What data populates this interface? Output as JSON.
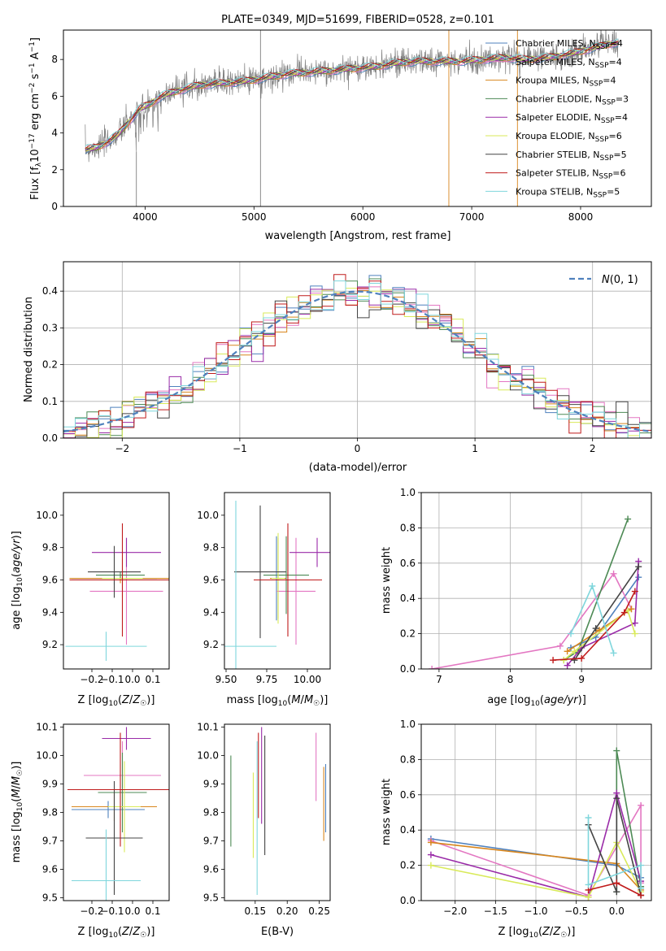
{
  "chart_data": [
    {
      "id": "spectrum",
      "type": "line",
      "title": "PLATE=0349, MJD=51699, FIBERID=0528, z=0.101",
      "xlabel": "wavelength [Angstrom, rest frame]",
      "ylabel": "Flux [f$_\\lambda$10$^{-17}$ erg cm$^{-2}$ s$^{-1}$ A$^{-1}$]",
      "ylabel_parts": [
        "Flux [f",
        "λ",
        "10",
        "−17",
        " erg cm",
        "−2",
        " s",
        "−1",
        " A",
        "−1",
        "]"
      ],
      "xlim": [
        3250,
        8650
      ],
      "ylim": [
        0,
        9.6
      ],
      "xticks": [
        4000,
        5000,
        6000,
        7000,
        8000
      ],
      "yticks": [
        0,
        2,
        4,
        6,
        8
      ],
      "legend_position": "upper-right",
      "data_sampling": [
        3450,
        3550,
        3650,
        3750,
        3850,
        3950,
        4050,
        4150,
        4300,
        4500,
        4700,
        4900,
        5100,
        5300,
        5500,
        5700,
        5900,
        6100,
        6300,
        6500,
        6700,
        6900,
        7100,
        7300,
        7500,
        7700,
        7900,
        8100,
        8300
      ],
      "observed_flux": [
        3.1,
        3.2,
        3.5,
        3.9,
        4.6,
        5.3,
        5.6,
        6.0,
        6.3,
        6.6,
        6.7,
        6.8,
        7.0,
        7.2,
        7.3,
        7.4,
        7.5,
        7.6,
        7.8,
        7.9,
        7.9,
        7.9,
        8.0,
        8.1,
        8.0,
        8.1,
        8.3,
        8.6,
        8.9
      ],
      "series": [
        {
          "name": "Chabrier MILES, N_SSP=4",
          "color": "#4f81bd"
        },
        {
          "name": "Salpeter MILES, N_SSP=4",
          "color": "#e377c2"
        },
        {
          "name": "Kroupa MILES, N_SSP=4",
          "color": "#d8861d"
        },
        {
          "name": "Chabrier ELODIE, N_SSP=3",
          "color": "#4d8a55"
        },
        {
          "name": "Salpeter ELODIE, N_SSP=4",
          "color": "#9a2ba8"
        },
        {
          "name": "Kroupa ELODIE, N_SSP=6",
          "color": "#d9ea5a"
        },
        {
          "name": "Chabrier STELIB, N_SSP=5",
          "color": "#444444"
        },
        {
          "name": "Salpeter STELIB, N_SSP=6",
          "color": "#c01b1b"
        },
        {
          "name": "Kroupa STELIB, N_SSP=5",
          "color": "#7fd6dc"
        }
      ],
      "legend_labels": [
        {
          "pre": "Chabrier MILES, N",
          "sub": "SSP",
          "post": "=4"
        },
        {
          "pre": "Salpeter MILES, N",
          "sub": "SSP",
          "post": "=4"
        },
        {
          "pre": "Kroupa MILES, N",
          "sub": "SSP",
          "post": "=4"
        },
        {
          "pre": "Chabrier ELODIE, N",
          "sub": "SSP",
          "post": "=3"
        },
        {
          "pre": "Salpeter ELODIE, N",
          "sub": "SSP",
          "post": "=4"
        },
        {
          "pre": "Kroupa ELODIE, N",
          "sub": "SSP",
          "post": "=6"
        },
        {
          "pre": "Chabrier STELIB, N",
          "sub": "SSP",
          "post": "=5"
        },
        {
          "pre": "Salpeter STELIB, N",
          "sub": "SSP",
          "post": "=6"
        },
        {
          "pre": "Kroupa STELIB, N",
          "sub": "SSP",
          "post": "=5"
        }
      ]
    },
    {
      "id": "residuals",
      "type": "histogram",
      "xlabel": "(data-model)/error",
      "ylabel": "Normed distribution",
      "xlim": [
        -2.5,
        2.5
      ],
      "ylim": [
        0,
        0.48
      ],
      "xticks": [
        -2,
        -1,
        0,
        1,
        2
      ],
      "yticks": [
        0.0,
        0.1,
        0.2,
        0.3,
        0.4
      ],
      "grid": true,
      "legend": {
        "label": "N(0,1)",
        "position": "upper-right"
      },
      "bin_width": 0.1,
      "reference_curve": "normal(0,1)"
    },
    {
      "id": "age_vs_Z",
      "type": "errorbar",
      "xlabel": "Z [log10(Z/Z☉)]",
      "ylabel": "age  [log10(age/yr)]",
      "xlim": [
        -0.34,
        0.18
      ],
      "ylim": [
        9.05,
        10.14
      ],
      "xticks": [
        -0.2,
        -0.1,
        0.0,
        0.1
      ],
      "yticks": [
        9.2,
        9.4,
        9.6,
        9.8,
        10.0
      ],
      "points": [
        {
          "x": -0.09,
          "xerr": 0.21,
          "y": 9.61,
          "yerr": 0.04,
          "color": "#4f81bd"
        },
        {
          "x": -0.03,
          "xerr": 0.18,
          "y": 9.53,
          "yerr": 0.33,
          "color": "#e377c2"
        },
        {
          "x": -0.06,
          "xerr": 0.25,
          "y": 9.61,
          "yerr": 0.03,
          "color": "#d8861d"
        },
        {
          "x": -0.06,
          "xerr": 0.12,
          "y": 9.63,
          "yerr": 0.02,
          "color": "#4d8a55"
        },
        {
          "x": -0.03,
          "xerr": 0.17,
          "y": 9.77,
          "yerr": 0.09,
          "color": "#9a2ba8"
        },
        {
          "x": -0.05,
          "xerr": 0.1,
          "y": 9.61,
          "yerr": 0.12,
          "color": "#d9ea5a"
        },
        {
          "x": -0.09,
          "xerr": 0.13,
          "y": 9.65,
          "yerr": 0.16,
          "color": "#444444"
        },
        {
          "x": -0.05,
          "xerr": 0.26,
          "y": 9.6,
          "yerr": 0.35,
          "color": "#c01b1b"
        },
        {
          "x": -0.13,
          "xerr": 0.2,
          "y": 9.19,
          "yerr": 0.09,
          "color": "#7fd6dc"
        }
      ]
    },
    {
      "id": "age_vs_mass",
      "type": "errorbar",
      "xlabel": "mass [log10(M/M☉)]",
      "ylabel": "",
      "xlim": [
        9.49,
        10.14
      ],
      "ylim": [
        9.05,
        10.14
      ],
      "xticks": [
        9.5,
        9.75,
        10.0
      ],
      "yticks": [
        9.2,
        9.4,
        9.6,
        9.8,
        10.0
      ],
      "points": [
        {
          "x": 9.81,
          "xerr": 0.03,
          "y": 9.61,
          "yerr": 0.26,
          "color": "#4f81bd"
        },
        {
          "x": 9.93,
          "xerr": 0.12,
          "y": 9.53,
          "yerr": 0.33,
          "color": "#e377c2"
        },
        {
          "x": 9.82,
          "xerr": 0.05,
          "y": 9.61,
          "yerr": 0.25,
          "color": "#d8861d"
        },
        {
          "x": 9.87,
          "xerr": 0.14,
          "y": 9.63,
          "yerr": 0.24,
          "color": "#4d8a55"
        },
        {
          "x": 10.06,
          "xerr": 0.17,
          "y": 9.77,
          "yerr": 0.09,
          "color": "#9a2ba8"
        },
        {
          "x": 9.82,
          "xerr": 0.04,
          "y": 9.61,
          "yerr": 0.28,
          "color": "#d9ea5a"
        },
        {
          "x": 9.71,
          "xerr": 0.16,
          "y": 9.65,
          "yerr": 0.41,
          "color": "#444444"
        },
        {
          "x": 9.88,
          "xerr": 0.21,
          "y": 9.6,
          "yerr": 0.35,
          "color": "#c01b1b"
        },
        {
          "x": 9.56,
          "xerr": 0.25,
          "y": 9.19,
          "yerr": 0.9,
          "color": "#7fd6dc"
        }
      ]
    },
    {
      "id": "weight_vs_age",
      "type": "line",
      "xlabel": "age  [log10(age/yr)]",
      "ylabel": "mass weight",
      "xlim": [
        6.75,
        9.98
      ],
      "ylim": [
        0.0,
        1.0
      ],
      "xticks": [
        7,
        8,
        9
      ],
      "yticks": [
        0.0,
        0.2,
        0.4,
        0.6,
        0.8,
        1.0
      ],
      "grid": true,
      "series": [
        {
          "color": "#4f81bd",
          "x": [
            8.85,
            9.2,
            9.8
          ],
          "y": [
            0.12,
            0.18,
            0.52
          ]
        },
        {
          "color": "#e377c2",
          "x": [
            6.9,
            8.7,
            9.45,
            9.7
          ],
          "y": [
            0.0,
            0.13,
            0.54,
            0.34
          ]
        },
        {
          "color": "#d8861d",
          "x": [
            8.8,
            9.25,
            9.7
          ],
          "y": [
            0.1,
            0.22,
            0.34
          ]
        },
        {
          "color": "#4d8a55",
          "x": [
            8.75,
            8.95,
            9.65
          ],
          "y": [
            0.05,
            0.1,
            0.85
          ]
        },
        {
          "color": "#9a2ba8",
          "x": [
            8.8,
            9.0,
            9.75,
            9.8
          ],
          "y": [
            0.02,
            0.12,
            0.26,
            0.61
          ]
        },
        {
          "color": "#d9ea5a",
          "x": [
            8.75,
            8.9,
            9.65,
            9.75
          ],
          "y": [
            0.05,
            0.1,
            0.33,
            0.2
          ]
        },
        {
          "color": "#444444",
          "x": [
            8.9,
            9.2,
            9.8
          ],
          "y": [
            0.05,
            0.23,
            0.58
          ]
        },
        {
          "color": "#c01b1b",
          "x": [
            8.6,
            9.0,
            9.6,
            9.75
          ],
          "y": [
            0.05,
            0.06,
            0.32,
            0.44
          ]
        },
        {
          "color": "#7fd6dc",
          "x": [
            8.85,
            9.15,
            9.45
          ],
          "y": [
            0.2,
            0.47,
            0.09
          ]
        }
      ]
    },
    {
      "id": "mass_vs_Z",
      "type": "errorbar",
      "xlabel": "Z [log10(Z/Z☉)]",
      "ylabel": "mass [log10(M/M☉)]",
      "xlim": [
        -0.34,
        0.18
      ],
      "ylim": [
        9.49,
        10.11
      ],
      "xticks": [
        -0.2,
        -0.1,
        0.0,
        0.1
      ],
      "yticks": [
        9.5,
        9.6,
        9.7,
        9.8,
        9.9,
        10.0,
        10.1
      ],
      "points": [
        {
          "x": -0.12,
          "xerr": 0.18,
          "y": 9.81,
          "yerr": 0.03,
          "color": "#4f81bd"
        },
        {
          "x": -0.05,
          "xerr": 0.19,
          "y": 9.93,
          "yerr": 0.12,
          "color": "#e377c2"
        },
        {
          "x": -0.09,
          "xerr": 0.21,
          "y": 9.82,
          "yerr": 0.05,
          "color": "#d8861d"
        },
        {
          "x": -0.05,
          "xerr": 0.12,
          "y": 9.87,
          "yerr": 0.14,
          "color": "#4d8a55"
        },
        {
          "x": -0.03,
          "xerr": 0.12,
          "y": 10.06,
          "yerr": 0.04,
          "color": "#9a2ba8"
        },
        {
          "x": -0.04,
          "xerr": 0.08,
          "y": 9.82,
          "yerr": 0.16,
          "color": "#d9ea5a"
        },
        {
          "x": -0.09,
          "xerr": 0.14,
          "y": 9.71,
          "yerr": 0.2,
          "color": "#444444"
        },
        {
          "x": -0.06,
          "xerr": 0.26,
          "y": 9.88,
          "yerr": 0.2,
          "color": "#c01b1b"
        },
        {
          "x": -0.13,
          "xerr": 0.17,
          "y": 9.56,
          "yerr": 0.18,
          "color": "#7fd6dc"
        }
      ]
    },
    {
      "id": "mass_vs_EBV",
      "type": "errorbar",
      "xlabel": "E(B-V)",
      "ylabel": "",
      "xlim": [
        0.102,
        0.267
      ],
      "ylim": [
        9.49,
        10.11
      ],
      "xticks": [
        0.15,
        0.2,
        0.25
      ],
      "yticks": [
        9.5,
        9.6,
        9.7,
        9.8,
        9.9,
        10.0,
        10.1
      ],
      "points": [
        {
          "x": 0.26,
          "xerr": 0.0,
          "y": 9.85,
          "yerr": 0.12,
          "color": "#4f81bd"
        },
        {
          "x": 0.245,
          "xerr": 0.0,
          "y": 9.96,
          "yerr": 0.12,
          "color": "#e377c2"
        },
        {
          "x": 0.257,
          "xerr": 0.0,
          "y": 9.83,
          "yerr": 0.13,
          "color": "#d8861d"
        },
        {
          "x": 0.112,
          "xerr": 0.0,
          "y": 9.84,
          "yerr": 0.16,
          "color": "#4d8a55"
        },
        {
          "x": 0.16,
          "xerr": 0.0,
          "y": 9.93,
          "yerr": 0.17,
          "color": "#9a2ba8"
        },
        {
          "x": 0.147,
          "xerr": 0.0,
          "y": 9.79,
          "yerr": 0.15,
          "color": "#d9ea5a"
        },
        {
          "x": 0.165,
          "xerr": 0.0,
          "y": 9.86,
          "yerr": 0.21,
          "color": "#444444"
        },
        {
          "x": 0.155,
          "xerr": 0.0,
          "y": 9.93,
          "yerr": 0.15,
          "color": "#c01b1b"
        },
        {
          "x": 0.153,
          "xerr": 0.0,
          "y": 9.78,
          "yerr": 0.27,
          "color": "#7fd6dc"
        }
      ]
    },
    {
      "id": "weight_vs_Z",
      "type": "line",
      "xlabel": "Z [log10(Z/Z☉)]",
      "ylabel": "mass weight",
      "xlim": [
        -2.42,
        0.43
      ],
      "ylim": [
        0.0,
        1.0
      ],
      "xticks": [
        -2.0,
        -1.5,
        -1.0,
        -0.5,
        0.0
      ],
      "yticks": [
        0.0,
        0.2,
        0.4,
        0.6,
        0.8,
        1.0
      ],
      "grid": true,
      "series": [
        {
          "color": "#4f81bd",
          "x": [
            -2.3,
            0.0,
            0.3
          ],
          "y": [
            0.35,
            0.2,
            0.13
          ]
        },
        {
          "color": "#e377c2",
          "x": [
            -2.3,
            -0.35,
            0.3,
            0.3
          ],
          "y": [
            0.34,
            0.03,
            0.54,
            0.1
          ]
        },
        {
          "color": "#d8861d",
          "x": [
            -2.3,
            0.0,
            0.3
          ],
          "y": [
            0.33,
            0.21,
            0.06
          ]
        },
        {
          "color": "#4d8a55",
          "x": [
            0.0,
            0.0,
            0.3
          ],
          "y": [
            0.05,
            0.85,
            0.08
          ]
        },
        {
          "color": "#9a2ba8",
          "x": [
            -2.3,
            -0.35,
            0.0,
            0.3
          ],
          "y": [
            0.26,
            0.02,
            0.61,
            0.11
          ]
        },
        {
          "color": "#d9ea5a",
          "x": [
            -2.3,
            -0.35,
            0.0,
            0.3
          ],
          "y": [
            0.2,
            0.02,
            0.33,
            0.05
          ]
        },
        {
          "color": "#444444",
          "x": [
            -0.35,
            0.0,
            0.0,
            0.3
          ],
          "y": [
            0.43,
            0.05,
            0.58,
            0.03
          ]
        },
        {
          "color": "#c01b1b",
          "x": [
            -0.35,
            0.0,
            0.3
          ],
          "y": [
            0.06,
            0.1,
            0.03
          ]
        },
        {
          "color": "#7fd6dc",
          "x": [
            -0.35,
            -0.35,
            0.3,
            0.3
          ],
          "y": [
            0.47,
            0.09,
            0.2,
            0.07
          ]
        }
      ]
    }
  ]
}
